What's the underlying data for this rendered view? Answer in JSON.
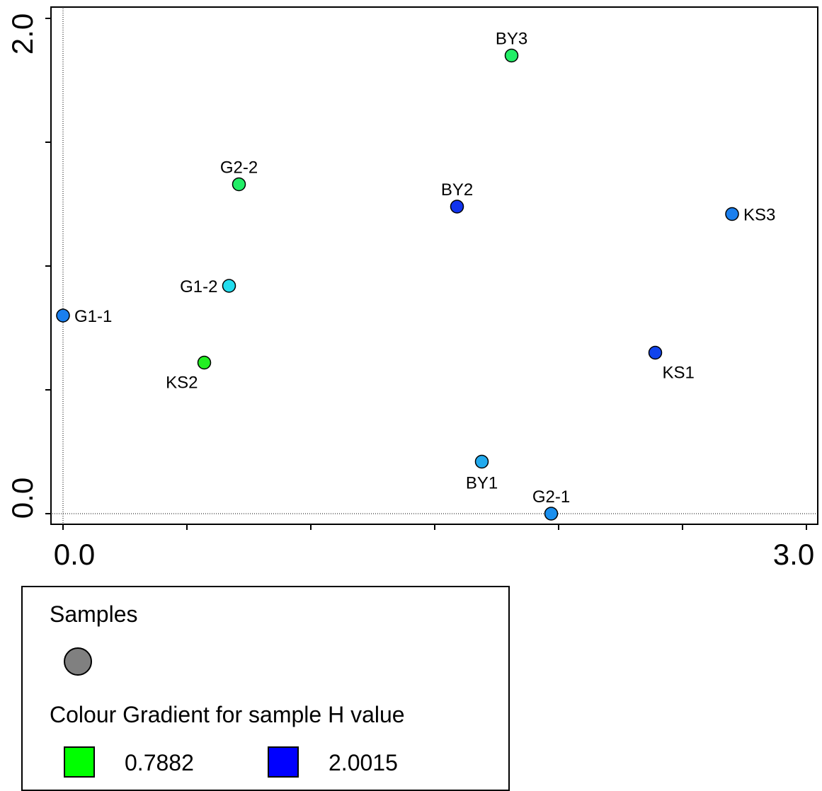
{
  "chart_data": {
    "type": "scatter",
    "xlim": [
      0.0,
      3.0
    ],
    "ylim": [
      0.0,
      2.0
    ],
    "x_tick_labels": [
      "0.0",
      "3.0"
    ],
    "y_tick_labels": [
      "0.0",
      "2.0"
    ],
    "grid": false,
    "points": [
      {
        "label": "BY3",
        "x": 1.81,
        "y": 1.85,
        "color": "#22ee66"
      },
      {
        "label": "G2-2",
        "x": 0.71,
        "y": 1.33,
        "color": "#22ee66"
      },
      {
        "label": "BY2",
        "x": 1.59,
        "y": 1.24,
        "color": "#1133ee"
      },
      {
        "label": "KS3",
        "x": 2.7,
        "y": 1.21,
        "color": "#1a7fee"
      },
      {
        "label": "G1-2",
        "x": 0.67,
        "y": 0.92,
        "color": "#22ddee"
      },
      {
        "label": "G1-1",
        "x": 0.0,
        "y": 0.8,
        "color": "#1a7fee"
      },
      {
        "label": "KS2",
        "x": 0.57,
        "y": 0.61,
        "color": "#22ee22"
      },
      {
        "label": "KS1",
        "x": 2.39,
        "y": 0.65,
        "color": "#1144ee"
      },
      {
        "label": "BY1",
        "x": 1.69,
        "y": 0.21,
        "color": "#22aaee"
      },
      {
        "label": "G2-1",
        "x": 1.97,
        "y": 0.0,
        "color": "#1a8fee"
      }
    ]
  },
  "legend": {
    "title": "Samples",
    "marker_color": "#808080",
    "gradient_title": "Colour Gradient for sample H value",
    "low_label": "0.7882",
    "low_color": "#00ff00",
    "high_label": "2.0015",
    "high_color": "#0000ff"
  }
}
